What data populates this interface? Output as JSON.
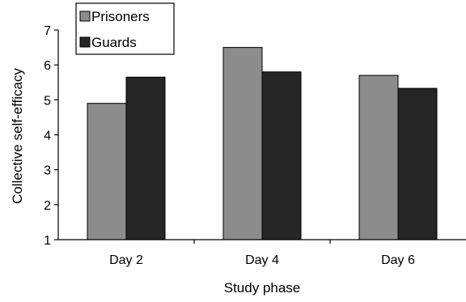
{
  "chart_data": {
    "type": "bar",
    "categories": [
      "Day 2",
      "Day 4",
      "Day 6"
    ],
    "series": [
      {
        "name": "Prisoners",
        "values": [
          4.9,
          6.5,
          5.7
        ],
        "color": "#8c8c8c"
      },
      {
        "name": "Guards",
        "values": [
          5.65,
          5.8,
          5.33
        ],
        "color": "#262626"
      }
    ],
    "xlabel": "Study phase",
    "ylabel": "Collective self-efficacy",
    "ylim": [
      1,
      7
    ],
    "yticks": [
      "1",
      "2",
      "3",
      "4",
      "5",
      "6",
      "7"
    ],
    "grid": false,
    "legend_position": "top-left"
  }
}
